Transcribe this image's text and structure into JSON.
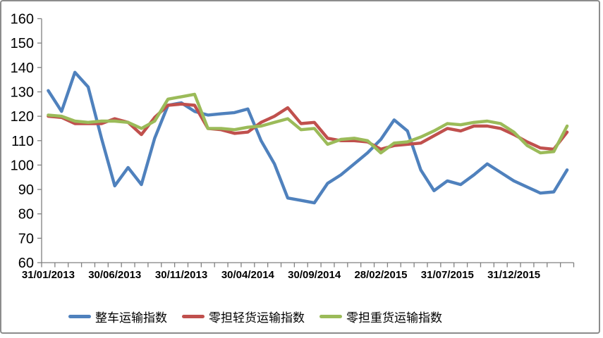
{
  "chart_data": {
    "type": "line",
    "title": "",
    "xlabel": "",
    "ylabel": "",
    "ylim": [
      60,
      160
    ],
    "y_ticks": [
      60,
      70,
      80,
      90,
      100,
      110,
      120,
      130,
      140,
      150,
      160
    ],
    "x_tick_labels": [
      "31/01/2013",
      "30/06/2013",
      "30/11/2013",
      "30/04/2014",
      "30/09/2014",
      "28/02/2015",
      "31/07/2015",
      "31/12/2015"
    ],
    "x_label_interval": 5,
    "n_points": 40,
    "grid": false,
    "legend_position": "bottom",
    "axis_color": "#808080",
    "label_color": "#000000",
    "series": [
      {
        "name": "整车运输指数",
        "color": "#4F81BD",
        "values": [
          130.5,
          122,
          138,
          132,
          111,
          91.5,
          99,
          92,
          111,
          124.5,
          125.5,
          122,
          120.5,
          121,
          121.5,
          123,
          110,
          100.5,
          86.5,
          85.5,
          84.5,
          92.5,
          96,
          100.5,
          105,
          110.5,
          118.5,
          114,
          98,
          89.5,
          93.5,
          92,
          96,
          100.5,
          97,
          93.5,
          91,
          88.5,
          89,
          98
        ]
      },
      {
        "name": "零担轻货运输指数",
        "color": "#C0504D",
        "values": [
          120,
          119.5,
          117,
          117,
          117,
          119,
          117.5,
          112.5,
          119.5,
          124.5,
          125,
          124.5,
          115,
          114.5,
          113,
          113.5,
          117.5,
          120,
          123.5,
          117,
          117.5,
          111,
          110,
          110,
          109.5,
          106.5,
          108,
          108.5,
          109,
          112,
          115,
          114,
          116,
          116,
          115,
          112.5,
          109.5,
          107,
          106.5,
          113.5
        ]
      },
      {
        "name": "零担重货运输指数",
        "color": "#9BBB59",
        "values": [
          120.5,
          120,
          118,
          117.5,
          118,
          118,
          117.5,
          115,
          118,
          127,
          128,
          129,
          115,
          115,
          114.5,
          115.5,
          116,
          117.5,
          119,
          114.5,
          115,
          108.5,
          110.5,
          111,
          110,
          105,
          109,
          109.5,
          111.5,
          114,
          117,
          116.5,
          117.5,
          118,
          117,
          113.5,
          108,
          105,
          105.5,
          116
        ]
      }
    ]
  }
}
